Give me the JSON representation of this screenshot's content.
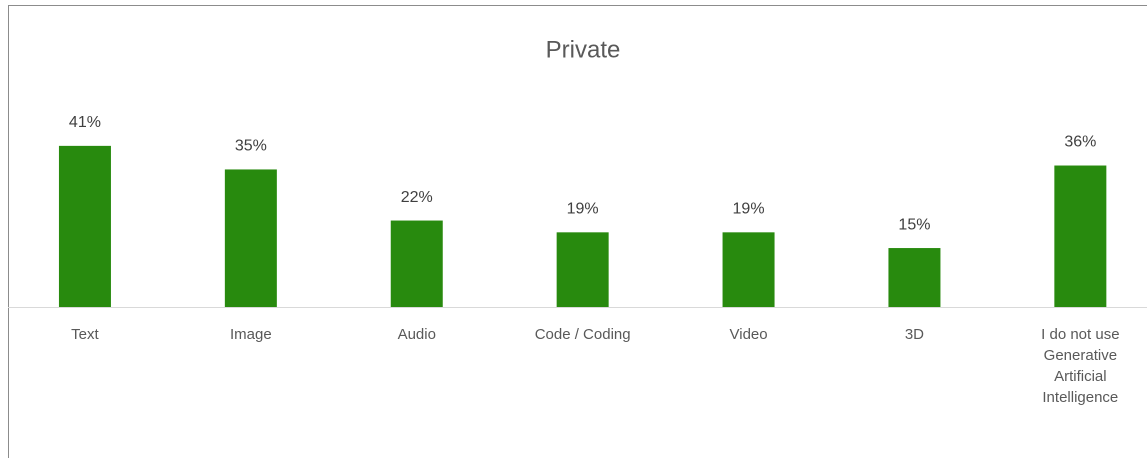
{
  "chart_data": {
    "type": "bar",
    "title": "Private",
    "categories": [
      "Text",
      "Image",
      "Audio",
      "Code / Coding",
      "Video",
      "3D",
      "I do not use Generative Artificial Intelligence"
    ],
    "values": [
      41,
      35,
      22,
      19,
      19,
      15,
      36
    ],
    "value_labels": [
      "41%",
      "35%",
      "22%",
      "19%",
      "19%",
      "15%",
      "36%"
    ],
    "color": "#288a0e"
  }
}
